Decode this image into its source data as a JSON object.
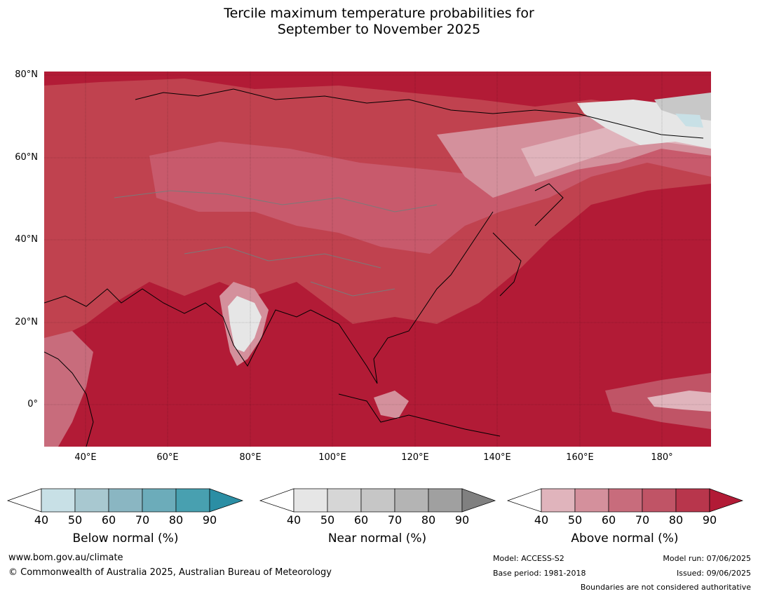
{
  "title_line1": "Tercile maximum temperature probabilities for",
  "title_line2": "September to November 2025",
  "lat_labels": [
    "80°N",
    "60°N",
    "40°N",
    "20°N",
    "0°"
  ],
  "lon_labels": [
    "40°E",
    "60°E",
    "80°E",
    "100°E",
    "120°E",
    "140°E",
    "160°E",
    "180°"
  ],
  "colorbars": [
    {
      "label": "Below normal (%)",
      "ticks": [
        "40",
        "50",
        "60",
        "70",
        "80",
        "90"
      ],
      "colors": [
        "#ffffff",
        "#c8e0e6",
        "#a8c8d0",
        "#8ab6c2",
        "#6cacba",
        "#48a0b0",
        "#2b8ea4"
      ]
    },
    {
      "label": "Near normal (%)",
      "ticks": [
        "40",
        "50",
        "60",
        "70",
        "80",
        "90"
      ],
      "colors": [
        "#ffffff",
        "#e6e6e6",
        "#d6d6d6",
        "#c6c6c6",
        "#b4b4b4",
        "#a0a0a0",
        "#808080"
      ]
    },
    {
      "label": "Above normal (%)",
      "ticks": [
        "40",
        "50",
        "60",
        "70",
        "80",
        "90"
      ],
      "colors": [
        "#ffffff",
        "#e0b4bc",
        "#d4909c",
        "#c86c7c",
        "#c05466",
        "#b8364c",
        "#b21b36"
      ]
    }
  ],
  "footer": {
    "website": "www.bom.gov.au/climate",
    "copyright": "© Commonwealth of Australia 2025, Australian Bureau of Meteorology",
    "model": "Model: ACCESS-S2",
    "base_period": "Base period: 1981-2018",
    "model_run": "Model run: 07/06/2025",
    "issued": "Issued: 09/06/2025",
    "disclaimer": "Boundaries are not considered authoritative"
  }
}
